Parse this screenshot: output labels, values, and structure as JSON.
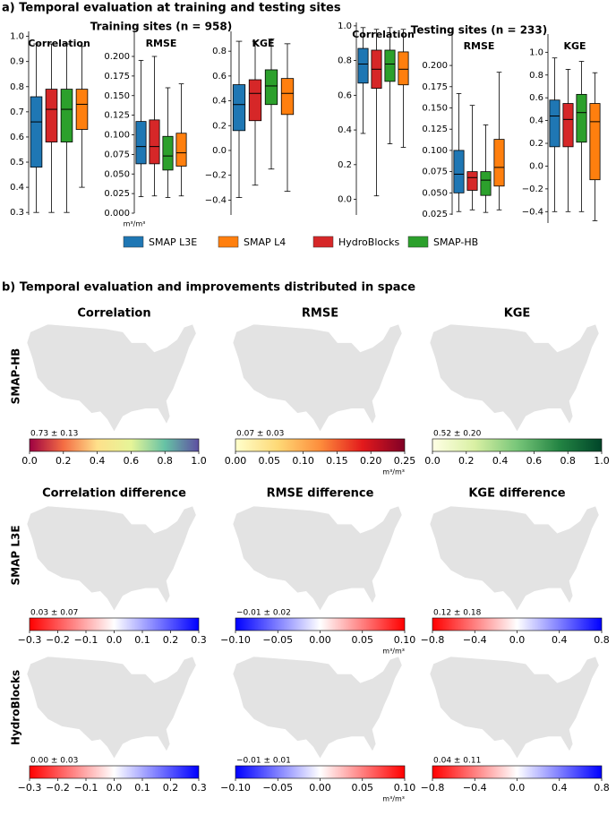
{
  "figure": {
    "panel_a_title": "a) Temporal evaluation at training and testing sites",
    "training_title": "Training sites (n = 958)",
    "testing_title": "Testing sites (n = 233)",
    "panel_b_title": "b) Temporal evaluation and improvements distributed in space",
    "row_labels": [
      "SMAP-HB",
      "SMAP L3E",
      "HydroBlocks"
    ],
    "legend": [
      {
        "name": "SMAP L3E",
        "color": "#1f77b4"
      },
      {
        "name": "SMAP L4",
        "color": "#ff7f0e"
      },
      {
        "name": "HydroBlocks",
        "color": "#d62728"
      },
      {
        "name": "SMAP-HB",
        "color": "#2ca02c"
      }
    ]
  },
  "chart_data": [
    {
      "type": "box",
      "title": "Correlation",
      "ylim": [
        0.29,
        1.02
      ],
      "yticks": [
        0.3,
        0.4,
        0.5,
        0.6,
        0.7,
        0.8,
        0.9,
        {
          "value": 1.0,
          "label": "1.0"
        }
      ],
      "series": [
        {
          "color": "#1f77b4",
          "values": [
            0.3,
            0.48,
            0.66,
            0.76,
            0.97
          ]
        },
        {
          "color": "#d62728",
          "values": [
            0.3,
            0.58,
            0.71,
            0.79,
            0.97
          ]
        },
        {
          "color": "#2ca02c",
          "values": [
            0.3,
            0.58,
            0.71,
            0.79,
            0.97
          ]
        },
        {
          "color": "#ff7f0e",
          "values": [
            0.4,
            0.63,
            0.73,
            0.79,
            0.96
          ]
        }
      ]
    },
    {
      "type": "box",
      "title": "RMSE",
      "unit": "m³/m³",
      "ylim": [
        0,
        0.232
      ],
      "yticks": [
        {
          "value": 0,
          "label": "0.000"
        },
        0.025,
        {
          "value": 0.05,
          "label": "0.050"
        },
        0.075,
        {
          "value": 0.1,
          "label": "0.100"
        },
        0.125,
        {
          "value": 0.15,
          "label": "0.150"
        },
        0.175,
        {
          "value": 0.2,
          "label": "0.200"
        }
      ],
      "series": [
        {
          "color": "#1f77b4",
          "values": [
            0.021,
            0.063,
            0.085,
            0.117,
            0.195
          ]
        },
        {
          "color": "#d62728",
          "values": [
            0.022,
            0.063,
            0.085,
            0.119,
            0.2
          ]
        },
        {
          "color": "#2ca02c",
          "values": [
            0.02,
            0.055,
            0.073,
            0.098,
            0.16
          ]
        },
        {
          "color": "#ff7f0e",
          "values": [
            0.022,
            0.06,
            0.077,
            0.102,
            0.165
          ]
        }
      ]
    },
    {
      "type": "box",
      "title": "KGE",
      "ylim": [
        -0.52,
        0.96
      ],
      "yticks": [
        {
          "value": -0.4,
          "label": "−0.4"
        },
        {
          "value": -0.2,
          "label": "−0.2"
        },
        {
          "value": 0,
          "label": "0.0"
        },
        0.2,
        0.4,
        0.6,
        0.8
      ],
      "series": [
        {
          "color": "#1f77b4",
          "values": [
            -0.38,
            0.16,
            0.37,
            0.53,
            0.88
          ]
        },
        {
          "color": "#d62728",
          "values": [
            -0.28,
            0.24,
            0.46,
            0.57,
            0.88
          ]
        },
        {
          "color": "#2ca02c",
          "values": [
            -0.15,
            0.37,
            0.52,
            0.65,
            0.9
          ]
        },
        {
          "color": "#ff7f0e",
          "values": [
            -0.33,
            0.29,
            0.46,
            0.58,
            0.86
          ]
        }
      ]
    },
    {
      "type": "box",
      "title": "Correlation",
      "ylim": [
        -0.09,
        1.02
      ],
      "yticks": [
        {
          "value": 0,
          "label": "0.0"
        },
        0.2,
        0.4,
        0.6,
        0.8,
        {
          "value": 1.0,
          "label": "1.0"
        }
      ],
      "series": [
        {
          "color": "#1f77b4",
          "values": [
            0.38,
            0.67,
            0.78,
            0.87,
            0.99
          ]
        },
        {
          "color": "#d62728",
          "values": [
            0.02,
            0.64,
            0.75,
            0.86,
            0.98
          ]
        },
        {
          "color": "#2ca02c",
          "values": [
            0.32,
            0.68,
            0.78,
            0.86,
            0.99
          ]
        },
        {
          "color": "#ff7f0e",
          "values": [
            0.3,
            0.66,
            0.75,
            0.85,
            0.98
          ]
        }
      ]
    },
    {
      "type": "box",
      "title": "RMSE",
      "ylim": [
        0.024,
        0.237
      ],
      "yticks": [
        0.025,
        {
          "value": 0.05,
          "label": "0.050"
        },
        0.075,
        {
          "value": 0.1,
          "label": "0.100"
        },
        0.125,
        {
          "value": 0.15,
          "label": "0.150"
        },
        0.175,
        {
          "value": 0.2,
          "label": "0.200"
        }
      ],
      "series": [
        {
          "color": "#1f77b4",
          "values": [
            0.028,
            0.05,
            0.072,
            0.1,
            0.167
          ]
        },
        {
          "color": "#d62728",
          "values": [
            0.03,
            0.053,
            0.068,
            0.075,
            0.153
          ]
        },
        {
          "color": "#2ca02c",
          "values": [
            0.027,
            0.047,
            0.065,
            0.075,
            0.13
          ]
        },
        {
          "color": "#ff7f0e",
          "values": [
            0.03,
            0.058,
            0.08,
            0.113,
            0.192
          ]
        }
      ]
    },
    {
      "type": "box",
      "title": "KGE",
      "ylim": [
        -0.5,
        1.16
      ],
      "yticks": [
        {
          "value": -0.4,
          "label": "−0.4"
        },
        {
          "value": -0.2,
          "label": "−0.2"
        },
        {
          "value": 0,
          "label": "0.0"
        },
        0.2,
        0.4,
        0.6,
        0.8,
        {
          "value": 1.0,
          "label": "1.0"
        }
      ],
      "series": [
        {
          "color": "#1f77b4",
          "values": [
            -0.4,
            0.17,
            0.44,
            0.58,
            0.95
          ]
        },
        {
          "color": "#d62728",
          "values": [
            -0.4,
            0.17,
            0.41,
            0.55,
            0.85
          ]
        },
        {
          "color": "#2ca02c",
          "values": [
            -0.4,
            0.21,
            0.47,
            0.63,
            0.92
          ]
        },
        {
          "color": "#ff7f0e",
          "values": [
            -0.48,
            -0.12,
            0.39,
            0.55,
            0.82
          ]
        }
      ]
    },
    {
      "type": "map",
      "title": "Correlation",
      "stat": "0.73 ± 0.13",
      "clim": [
        0,
        1
      ],
      "colors": [
        "#9e0142",
        "#f46d43",
        "#fee08b",
        "#e6f598",
        "#66c2a5",
        "#5e4fa2"
      ],
      "cticks": [
        {
          "value": 0,
          "label": "0.0"
        },
        0.2,
        0.4,
        0.6,
        0.8,
        {
          "value": 1,
          "label": "1.0"
        }
      ]
    },
    {
      "type": "map",
      "title": "RMSE",
      "stat": "0.07 ± 0.03",
      "unit": "m³/m³",
      "clim": [
        0,
        0.25
      ],
      "colors": [
        "#ffffcc",
        "#fed976",
        "#fd8d3c",
        "#e31a1c",
        "#800026"
      ],
      "cticks": [
        {
          "value": 0,
          "label": "0.00"
        },
        0.05,
        {
          "value": 0.1,
          "label": "0.10"
        },
        0.15,
        {
          "value": 0.2,
          "label": "0.20"
        },
        0.25
      ]
    },
    {
      "type": "map",
      "title": "KGE",
      "stat": "0.52 ± 0.20",
      "clim": [
        0,
        1
      ],
      "colors": [
        "#ffffe5",
        "#d9f0a3",
        "#78c679",
        "#238443",
        "#004529"
      ],
      "cticks": [
        {
          "value": 0,
          "label": "0.0"
        },
        0.2,
        0.4,
        0.6,
        0.8,
        {
          "value": 1,
          "label": "1.0"
        }
      ]
    },
    {
      "type": "map",
      "title": "Correlation difference",
      "stat": "0.03 ± 0.07",
      "clim": [
        -0.3,
        0.3
      ],
      "colors": [
        "#ff0000",
        "#ffffff",
        "#0000ff"
      ],
      "cticks": [
        {
          "value": -0.3,
          "label": "−0.3"
        },
        {
          "value": -0.2,
          "label": "−0.2"
        },
        {
          "value": -0.1,
          "label": "−0.1"
        },
        {
          "value": 0,
          "label": "0.0"
        },
        0.1,
        0.2,
        0.3
      ]
    },
    {
      "type": "map",
      "title": "RMSE difference",
      "stat": "−0.01 ± 0.02",
      "unit": "m³/m³",
      "clim": [
        -0.1,
        0.1
      ],
      "colors": [
        "#0000ff",
        "#ffffff",
        "#ff0000"
      ],
      "cticks": [
        {
          "value": -0.1,
          "label": "−0.10"
        },
        {
          "value": -0.05,
          "label": "−0.05"
        },
        {
          "value": 0,
          "label": "0.00"
        },
        0.05,
        {
          "value": 0.1,
          "label": "0.10"
        }
      ]
    },
    {
      "type": "map",
      "title": "KGE difference",
      "stat": "0.12 ± 0.18",
      "clim": [
        -0.8,
        0.8
      ],
      "colors": [
        "#ff0000",
        "#ffffff",
        "#0000ff"
      ],
      "cticks": [
        {
          "value": -0.8,
          "label": "−0.8"
        },
        {
          "value": -0.4,
          "label": "−0.4"
        },
        {
          "value": 0,
          "label": "0.0"
        },
        0.4,
        0.8
      ]
    },
    {
      "type": "map",
      "stat": "0.00 ± 0.03",
      "clim": [
        -0.3,
        0.3
      ],
      "colors": [
        "#ff0000",
        "#ffffff",
        "#0000ff"
      ],
      "cticks": [
        {
          "value": -0.3,
          "label": "−0.3"
        },
        {
          "value": -0.2,
          "label": "−0.2"
        },
        {
          "value": -0.1,
          "label": "−0.1"
        },
        {
          "value": 0,
          "label": "0.0"
        },
        0.1,
        0.2,
        0.3
      ]
    },
    {
      "type": "map",
      "stat": "−0.01 ± 0.01",
      "unit": "m³/m³",
      "clim": [
        -0.1,
        0.1
      ],
      "colors": [
        "#0000ff",
        "#ffffff",
        "#ff0000"
      ],
      "cticks": [
        {
          "value": -0.1,
          "label": "−0.10"
        },
        {
          "value": -0.05,
          "label": "−0.05"
        },
        {
          "value": 0,
          "label": "0.00"
        },
        0.05,
        {
          "value": 0.1,
          "label": "0.10"
        }
      ]
    },
    {
      "type": "map",
      "stat": "0.04 ± 0.11",
      "clim": [
        -0.8,
        0.8
      ],
      "colors": [
        "#ff0000",
        "#ffffff",
        "#0000ff"
      ],
      "cticks": [
        {
          "value": -0.8,
          "label": "−0.8"
        },
        {
          "value": -0.4,
          "label": "−0.4"
        },
        {
          "value": 0,
          "label": "0.0"
        },
        0.4,
        0.8
      ]
    }
  ]
}
